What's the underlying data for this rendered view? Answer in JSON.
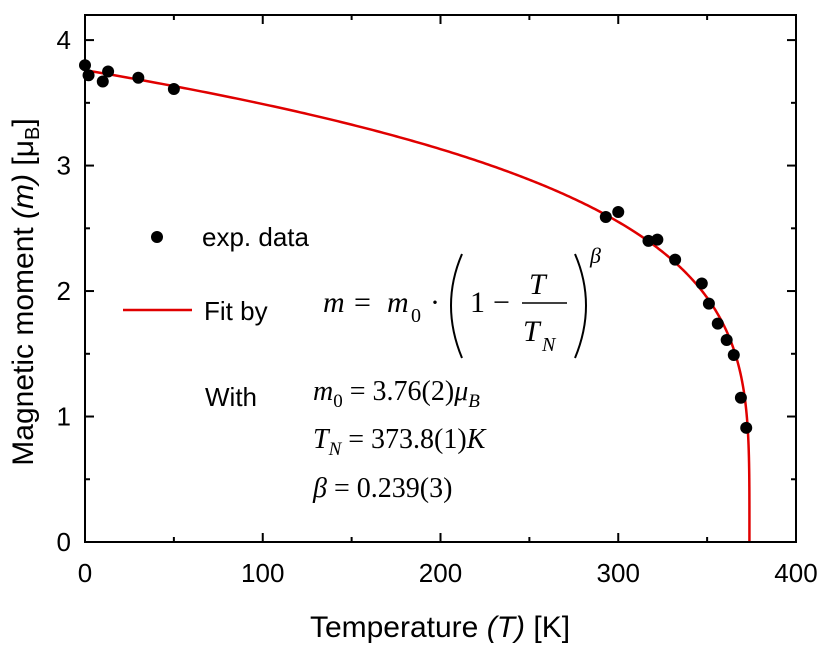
{
  "chart_data": {
    "type": "scatter",
    "title": "",
    "xlabel": "Temperature",
    "xlabel_var": "(T)",
    "xlabel_unit": "[K]",
    "ylabel": "Magnetic moment",
    "ylabel_var": "(m)",
    "ylabel_unit_prefix": "[μ",
    "ylabel_unit_sub": "B",
    "ylabel_unit_suffix": "]",
    "xlim": [
      0,
      400
    ],
    "ylim": [
      0,
      4.2
    ],
    "xticks": [
      "0",
      "100",
      "200",
      "300",
      "400"
    ],
    "yticks": [
      "0",
      "1",
      "2",
      "3",
      "4"
    ],
    "series": [
      {
        "name": "exp. data",
        "kind": "points",
        "color": "#000000",
        "x": [
          0,
          2,
          10,
          13,
          30,
          50,
          293,
          300,
          317,
          322,
          332,
          347,
          351,
          356,
          361,
          365,
          369,
          372
        ],
        "y": [
          3.8,
          3.72,
          3.67,
          3.75,
          3.7,
          3.61,
          2.59,
          2.63,
          2.4,
          2.41,
          2.25,
          2.06,
          1.9,
          1.74,
          1.61,
          1.49,
          1.15,
          0.91
        ]
      },
      {
        "name": "Fit by",
        "kind": "fit",
        "color": "#e00000",
        "m0": 3.76,
        "TN": 373.8,
        "beta": 0.239
      }
    ],
    "legend": {
      "position": "center-left",
      "data_label": "exp. data",
      "fit_label": "Fit by",
      "with_label": "With"
    },
    "equation": {
      "m": "m",
      "eq": "=",
      "m0_base": "m",
      "m0_sub": "0",
      "dot": "·",
      "one": "1",
      "minus": "−",
      "T": "T",
      "TN_base": "T",
      "TN_sub": "N",
      "beta": "β"
    },
    "parameters": [
      {
        "base": "m",
        "sub": "0",
        "rest": " = 3.76(2)",
        "unit_base": "μ",
        "unit_sub": "B"
      },
      {
        "base": "T",
        "sub": "N",
        "rest": " = 373.8(1)",
        "unit_base": "K",
        "unit_sub": ""
      },
      {
        "base": "β",
        "sub": "",
        "rest": " = 0.239(3)",
        "unit_base": "",
        "unit_sub": ""
      }
    ]
  }
}
